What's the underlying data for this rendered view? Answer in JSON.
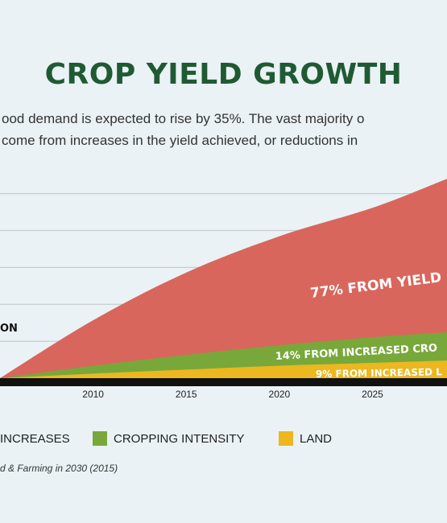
{
  "title": "CROP YIELD GROWTH",
  "subtitle_line1": "ood demand is expected to rise by 35%. The vast majority o",
  "subtitle_line2": "come from increases in the yield achieved, or reductions in",
  "source": "d & Farming in 2030 (2015)",
  "colors": {
    "yield": "#d9665c",
    "cropping": "#78a83a",
    "land": "#ecb71f",
    "axis": "#111111",
    "grid": "#c5cdd1",
    "title": "#1f5a33"
  },
  "chart_data": {
    "type": "area",
    "x": [
      2005,
      2010,
      2015,
      2020,
      2025,
      2029
    ],
    "xlim": [
      2005,
      2029
    ],
    "ylim": [
      0,
      35
    ],
    "grid": true,
    "series": [
      {
        "name": "LAND",
        "values": [
          0,
          0.8,
          1.5,
          2.2,
          2.7,
          3.1
        ]
      },
      {
        "name": "CROPPING INTENSITY",
        "values": [
          0,
          1.4,
          2.6,
          3.6,
          4.5,
          5.0
        ]
      },
      {
        "name": "INCREASES",
        "values": [
          0,
          8.0,
          14.5,
          19.2,
          22.8,
          27.0
        ]
      }
    ],
    "ticks": [
      "2010",
      "2015",
      "2020",
      "2025"
    ],
    "annotations": [
      "77% FROM YIELD",
      "14% FROM INCREASED CRO",
      "9% FROM INCREASED L",
      "ON"
    ],
    "legend": [
      "INCREASES",
      "CROPPING INTENSITY",
      "LAND"
    ],
    "legend_position": "bottom"
  }
}
